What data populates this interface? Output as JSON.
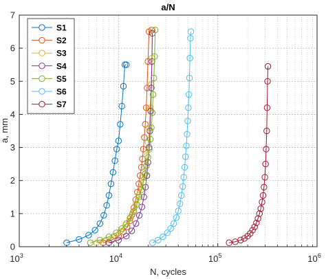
{
  "chart_data": {
    "type": "scatter",
    "title": "a/N",
    "xlabel": "N, cycles",
    "ylabel": "a, mm",
    "xscale": "log",
    "xlim": [
      1000,
      1000000
    ],
    "ylim": [
      0,
      7
    ],
    "grid": true,
    "legend_position": "top-left",
    "x_ticks": [
      {
        "base": "10",
        "exp": "3"
      },
      {
        "base": "10",
        "exp": "4"
      },
      {
        "base": "10",
        "exp": "5"
      },
      {
        "base": "10",
        "exp": "6"
      }
    ],
    "y_ticks": [
      "0",
      "1",
      "2",
      "3",
      "4",
      "5",
      "6",
      "7"
    ],
    "series": [
      {
        "name": "S1",
        "color": "#0072BD",
        "x": [
          3000,
          4000,
          5000,
          5800,
          6500,
          7100,
          7600,
          8000,
          8400,
          8800,
          9200,
          9600,
          10000,
          10400,
          10800,
          11200,
          11600,
          12000
        ],
        "y": [
          0.12,
          0.22,
          0.35,
          0.5,
          0.7,
          0.95,
          1.25,
          1.55,
          1.9,
          2.25,
          2.6,
          2.95,
          3.2,
          3.7,
          4.25,
          4.85,
          5.5,
          5.5
        ]
      },
      {
        "name": "S2",
        "color": "#D95319",
        "x": [
          7000,
          8500,
          10000,
          11200,
          12200,
          13000,
          13700,
          14300,
          14900,
          15500,
          16000,
          16500,
          17000,
          17400,
          17800,
          18200,
          18600,
          19000,
          19400,
          19800,
          20300,
          21500
        ],
        "y": [
          0.12,
          0.2,
          0.32,
          0.45,
          0.6,
          0.78,
          0.97,
          1.18,
          1.42,
          1.65,
          1.9,
          2.15,
          2.4,
          2.65,
          2.95,
          3.3,
          3.7,
          4.2,
          4.8,
          5.6,
          6.5,
          6.55
        ]
      },
      {
        "name": "S3",
        "color": "#EDB120",
        "x": [
          6000,
          7500,
          9000,
          10500,
          11800,
          13000,
          14000,
          15000,
          16000,
          17000,
          17800,
          18600,
          19300,
          19900,
          20400,
          20900,
          21300,
          21700,
          22000
        ],
        "y": [
          0.12,
          0.2,
          0.32,
          0.48,
          0.65,
          0.85,
          1.05,
          1.3,
          1.55,
          1.8,
          2.1,
          2.4,
          2.75,
          3.15,
          3.6,
          4.2,
          4.9,
          5.7,
          6.55
        ]
      },
      {
        "name": "S4",
        "color": "#7E2F8E",
        "x": [
          8000,
          10000,
          12000,
          13600,
          15000,
          16200,
          17200,
          18000,
          18700,
          19300,
          19800,
          20300,
          20700,
          21100,
          21400,
          21700,
          21900
        ],
        "y": [
          0.12,
          0.2,
          0.32,
          0.48,
          0.7,
          0.95,
          1.2,
          1.5,
          1.8,
          2.15,
          2.55,
          3.0,
          3.5,
          4.1,
          4.8,
          5.6,
          6.45
        ]
      },
      {
        "name": "S5",
        "color": "#77AC30",
        "x": [
          5200,
          6500,
          8000,
          9500,
          10800,
          12000,
          13200,
          14300,
          15300,
          16200,
          17000,
          17800,
          18500,
          19200,
          19800,
          20400,
          20900,
          21400,
          21900,
          22300,
          22700,
          23100,
          23400
        ],
        "y": [
          0.12,
          0.2,
          0.3,
          0.42,
          0.55,
          0.7,
          0.88,
          1.07,
          1.27,
          1.5,
          1.72,
          1.95,
          2.2,
          2.45,
          2.7,
          2.95,
          3.25,
          3.6,
          4.05,
          4.6,
          5.1,
          5.75,
          6.55
        ]
      },
      {
        "name": "S6",
        "color": "#4DBEEE",
        "x": [
          22000,
          25000,
          28000,
          31000,
          33500,
          36000,
          38200,
          40000,
          41600,
          43000,
          44300,
          45400,
          46400,
          47300,
          48200,
          49000,
          49800,
          50500,
          51200,
          51800,
          52400,
          53000,
          53500
        ],
        "y": [
          0.12,
          0.2,
          0.3,
          0.42,
          0.55,
          0.7,
          0.88,
          1.08,
          1.3,
          1.55,
          1.82,
          2.1,
          2.4,
          2.72,
          3.05,
          3.4,
          3.8,
          4.2,
          4.6,
          5.1,
          5.7,
          6.3,
          6.5
        ]
      },
      {
        "name": "S7",
        "color": "#A2142F",
        "x": [
          130000,
          150000,
          170000,
          185000,
          200000,
          212000,
          224000,
          235000,
          245000,
          254000,
          263000,
          271000,
          279000,
          286000,
          292000,
          298000,
          303000,
          307000,
          311000,
          314000,
          317000,
          320000
        ],
        "y": [
          0.12,
          0.15,
          0.2,
          0.25,
          0.32,
          0.4,
          0.5,
          0.6,
          0.72,
          0.85,
          1.0,
          1.15,
          1.35,
          1.55,
          1.8,
          2.1,
          2.5,
          2.95,
          3.5,
          4.2,
          5.0,
          5.45
        ]
      }
    ]
  }
}
